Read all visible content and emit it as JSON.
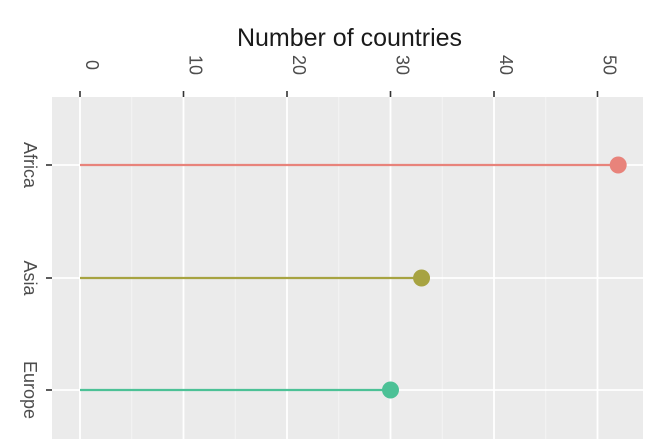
{
  "chart_data": {
    "type": "lollipop",
    "xlabel": "Number of countries",
    "xlim": [
      0,
      54
    ],
    "x_ticks": [
      0,
      10,
      20,
      30,
      40,
      50
    ],
    "grid": true,
    "categories": [
      "Africa",
      "Asia",
      "Europe"
    ],
    "values": [
      52,
      33,
      30
    ],
    "colors": [
      "#E8837B",
      "#A7A341",
      "#4CC196"
    ]
  }
}
